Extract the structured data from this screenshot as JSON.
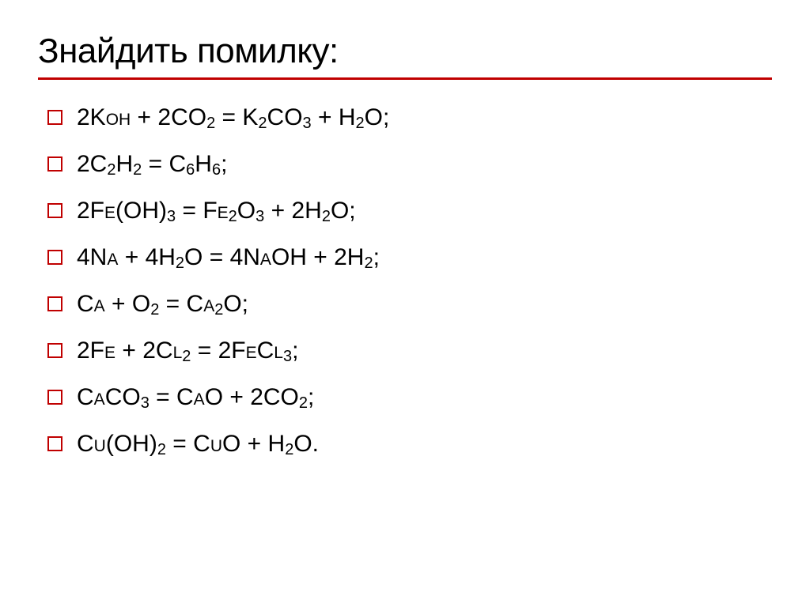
{
  "slide": {
    "title": "Знайдить помилку:",
    "equations": [
      "2K<span class='sc'>oh</span> + 2CO<sub>2</sub> = K<sub>2</sub>CO<sub>3</sub> + H<sub>2</sub>O;",
      "2C<sub>2</sub>H<sub>2</sub> = C<sub>6</sub>H<sub>6</sub>;",
      "2F<span class='sc'>e</span>(OH)<sub>3</sub> = F<span class='sc'>e</span><sub>2</sub>O<sub>3</sub> + 2H<sub>2</sub>O;",
      "4N<span class='sc'>a</span> + 4H<sub>2</sub>O = 4N<span class='sc'>a</span>OH + 2H<sub>2</sub>;",
      "C<span class='sc'>a</span> + O<sub>2</sub> = C<span class='sc'>a</span><sub>2</sub>O;",
      "2F<span class='sc'>e</span> + 2C<span class='sc'>l</span><sub>2</sub> = 2F<span class='sc'>e</span>C<span class='sc'>l</span><sub>3</sub>;",
      "C<span class='sc'>a</span>CO<sub>3</sub> = C<span class='sc'>a</span>O + 2CO<sub>2</sub>;",
      "C<span class='sc'>u</span>(OH)<sub>2</sub> = C<span class='sc'>u</span>O + H<sub>2</sub>O."
    ]
  },
  "styling": {
    "background_color": "#ffffff",
    "title_color": "#000000",
    "title_fontsize": 44,
    "title_underline_color": "#c00000",
    "title_underline_width": 3,
    "equation_fontsize": 30,
    "equation_color": "#000000",
    "subscript_fontsize": 20,
    "bullet_size": 19,
    "bullet_border_color": "#c00000",
    "bullet_border_width": 2.5,
    "bullet_fill": "transparent",
    "item_spacing": 20,
    "list_indent": 12,
    "slide_padding": [
      40,
      48
    ]
  }
}
